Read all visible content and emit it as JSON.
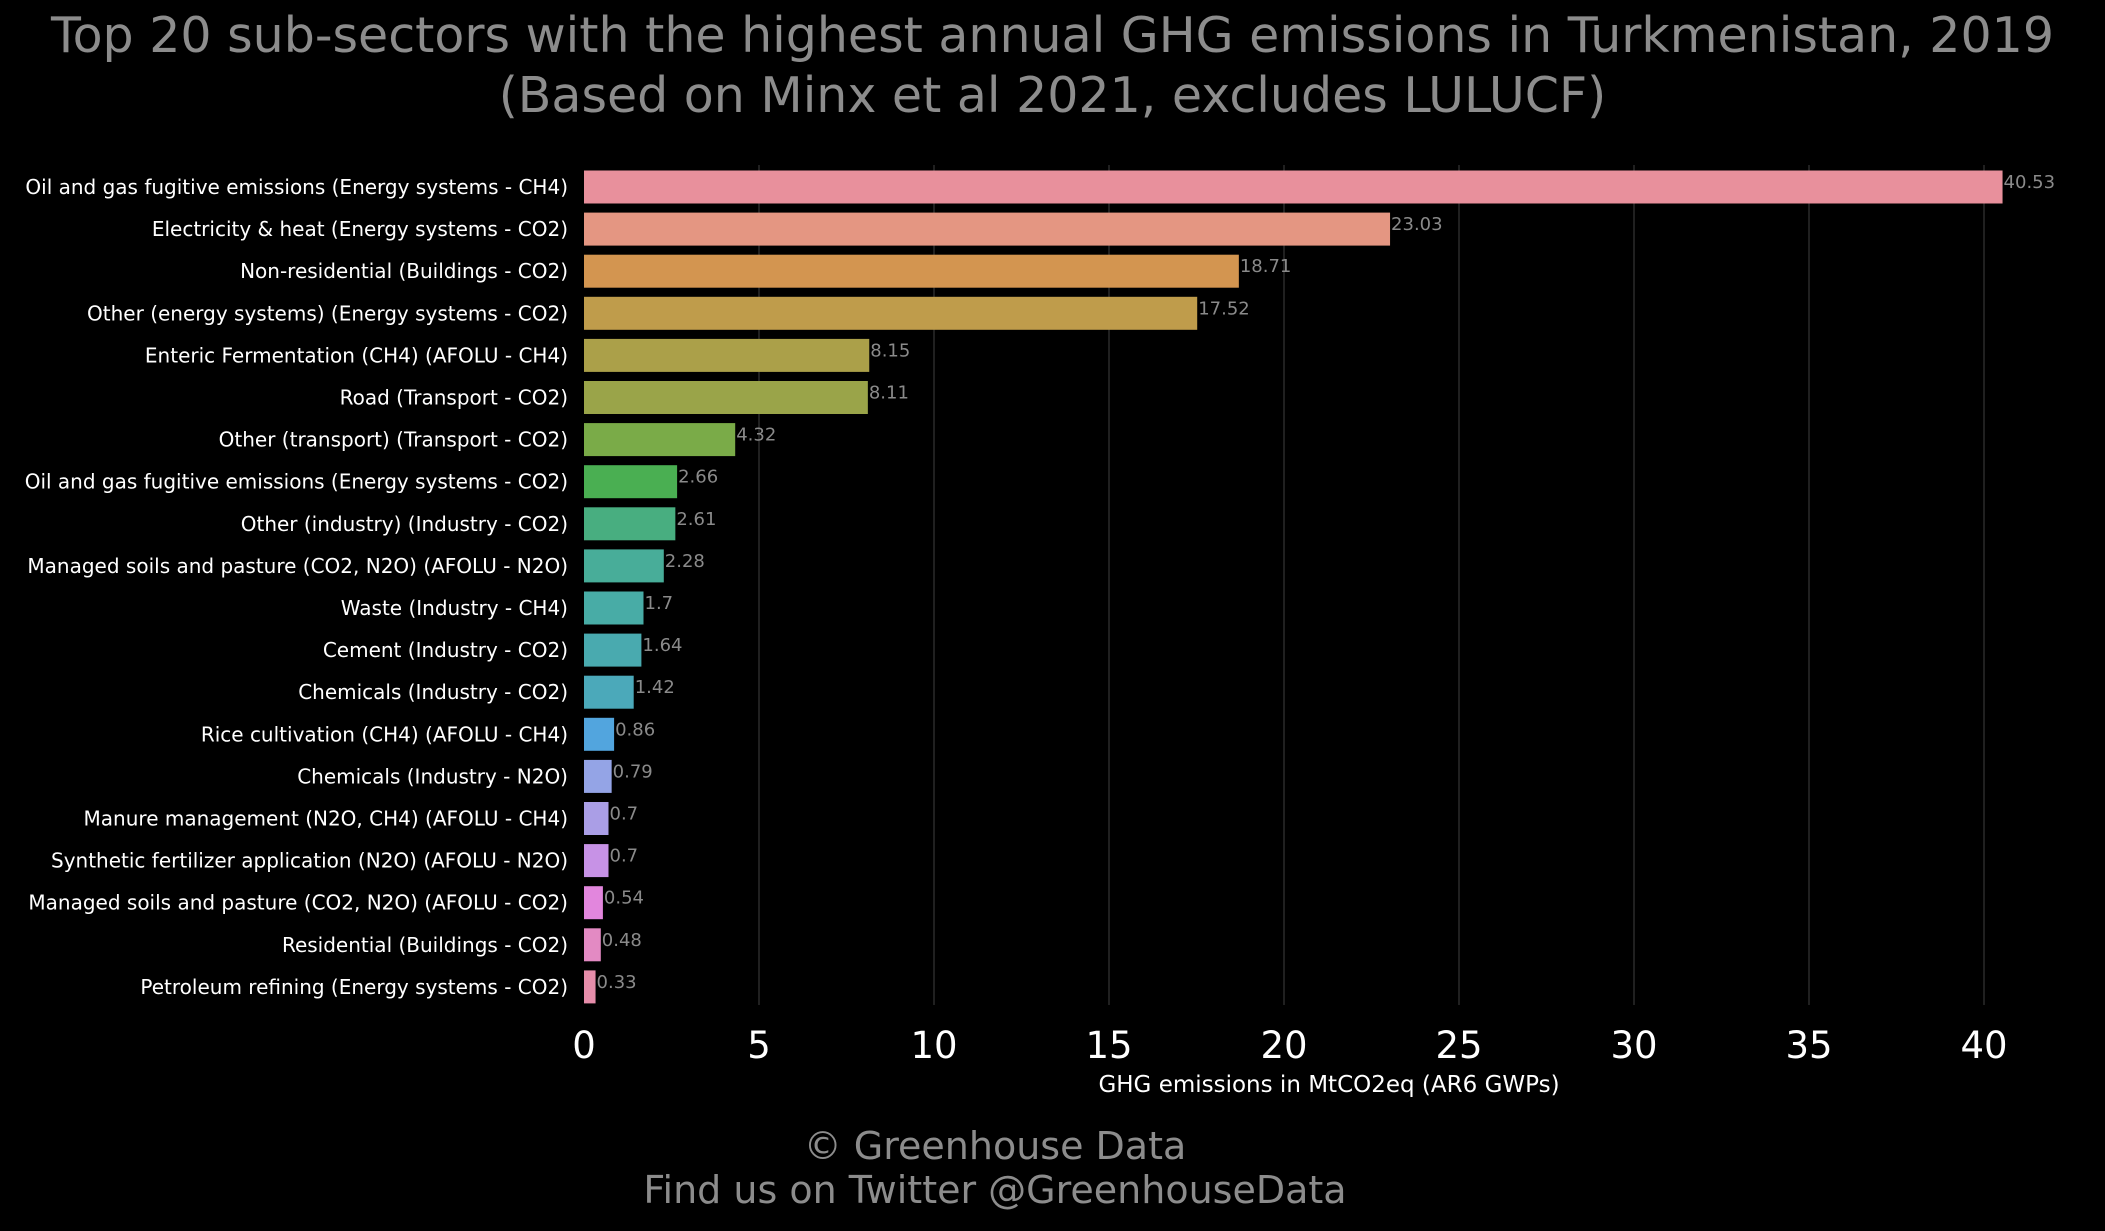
{
  "chart_data": {
    "type": "bar",
    "orientation": "horizontal",
    "title": "Top 20 sub-sectors with the highest annual GHG emissions in Turkmenistan, 2019",
    "subtitle": "(Based on Minx et al 2021, excludes LULUCF)",
    "xlabel": "GHG emissions in MtCO2eq (AR6 GWPs)",
    "ylabel": "",
    "xlim": [
      0,
      42
    ],
    "xticks": [
      0,
      5,
      10,
      15,
      20,
      25,
      30,
      35,
      40
    ],
    "grid": true,
    "categories": [
      "Oil and gas fugitive emissions (Energy systems - CH4)",
      "Electricity & heat (Energy systems - CO2)",
      "Non-residential (Buildings - CO2)",
      "Other (energy systems) (Energy systems - CO2)",
      "Enteric Fermentation (CH4) (AFOLU - CH4)",
      "Road (Transport - CO2)",
      "Other (transport) (Transport - CO2)",
      "Oil and gas fugitive emissions (Energy systems - CO2)",
      "Other (industry) (Industry - CO2)",
      "Managed soils and pasture (CO2, N2O) (AFOLU - N2O)",
      "Waste (Industry - CH4)",
      "Cement (Industry - CO2)",
      "Chemicals (Industry - CO2)",
      "Rice cultivation (CH4) (AFOLU - CH4)",
      "Chemicals (Industry - N2O)",
      "Manure management (N2O, CH4) (AFOLU - CH4)",
      "Synthetic fertilizer application (N2O) (AFOLU - N2O)",
      "Managed soils and pasture (CO2, N2O) (AFOLU - CO2)",
      "Residential (Buildings - CO2)",
      "Petroleum refining (Energy systems - CO2)"
    ],
    "values": [
      40.53,
      23.03,
      18.71,
      17.52,
      8.15,
      8.11,
      4.32,
      2.66,
      2.61,
      2.28,
      1.7,
      1.64,
      1.42,
      0.86,
      0.79,
      0.7,
      0.7,
      0.54,
      0.48,
      0.33
    ],
    "value_labels": [
      "40.53",
      "23.03",
      "18.71",
      "17.52",
      "8.15",
      "8.11",
      "4.32",
      "2.66",
      "2.61",
      "2.28",
      "1.7",
      "1.64",
      "1.42",
      "0.86",
      "0.79",
      "0.7",
      "0.7",
      "0.54",
      "0.48",
      "0.33"
    ],
    "colors": [
      "#e8909c",
      "#e49682",
      "#d39550",
      "#bf9c4b",
      "#aba049",
      "#9aa449",
      "#7aab48",
      "#4aaf52",
      "#48ae80",
      "#48ad99",
      "#48aca6",
      "#49aaaf",
      "#4ba9ba",
      "#52a5de",
      "#94a4e6",
      "#aa9ee6",
      "#c792e6",
      "#e286dd",
      "#e38ac3",
      "#e68daa"
    ],
    "background": "#000000",
    "grid_color": "#2a2a2a"
  },
  "footer": {
    "line1": "© Greenhouse Data",
    "line2": "Find us on Twitter @GreenhouseData"
  }
}
